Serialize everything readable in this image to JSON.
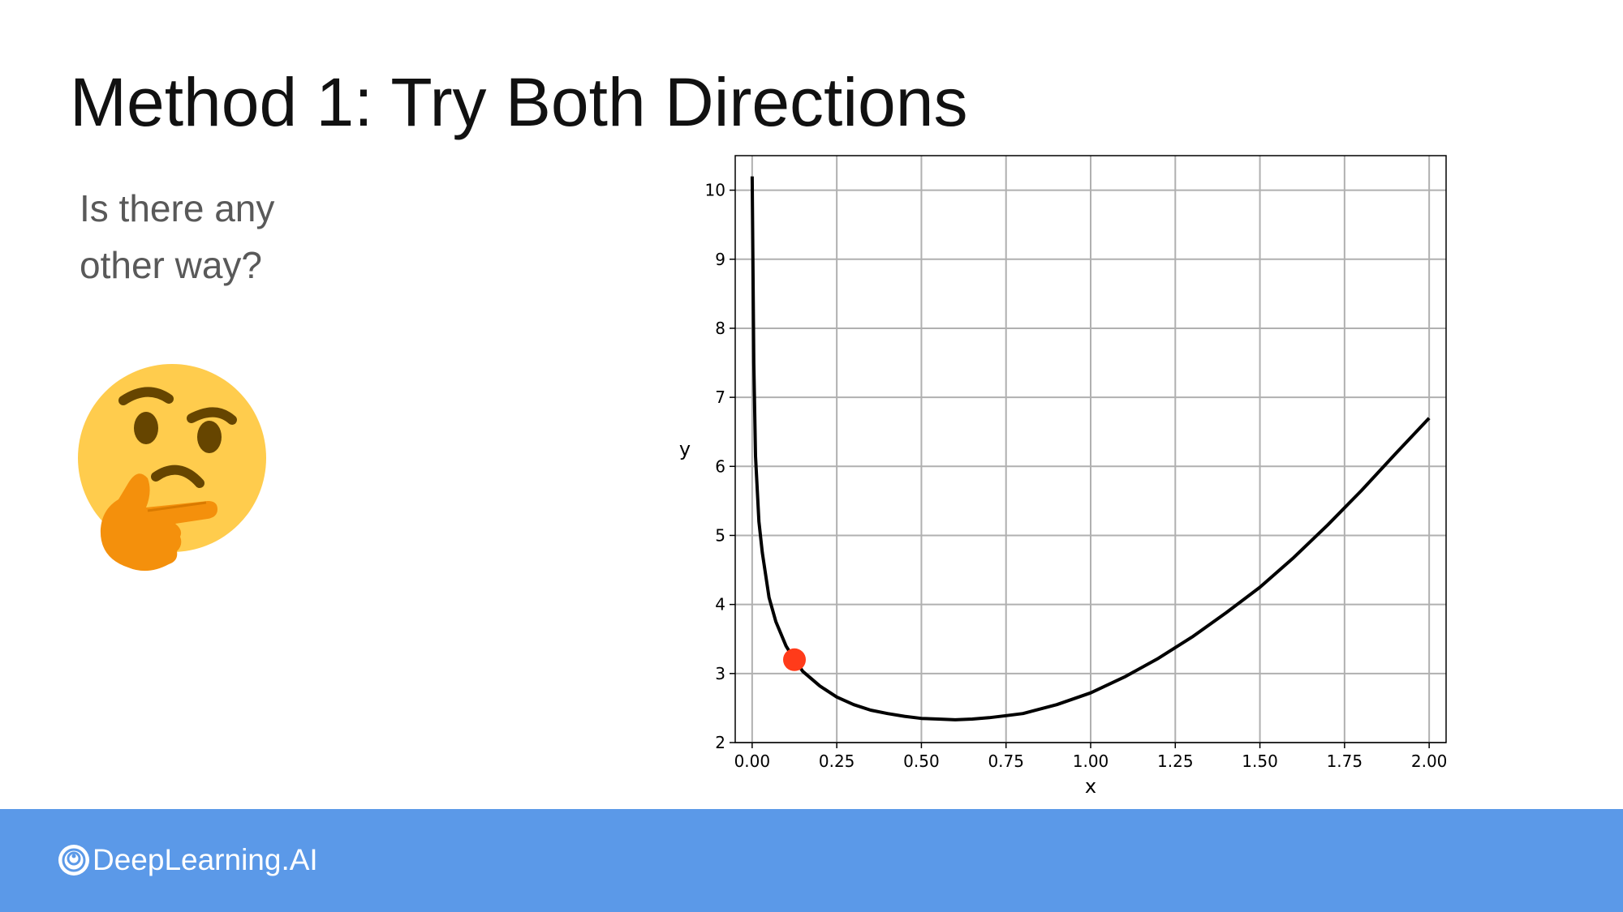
{
  "slide": {
    "title": "Method 1: Try Both Directions",
    "prompt_line1": "Is there any",
    "prompt_line2": "other way?",
    "emoji_icon": "thinking-face-icon"
  },
  "footer": {
    "brand": "DeepLearning.AI",
    "brand_icon": "deeplearning-ai-logo-icon",
    "color": "#5b99e8"
  },
  "chart_data": {
    "type": "line",
    "xlabel": "x",
    "ylabel": "y",
    "xlim": [
      -0.05,
      2.05
    ],
    "ylim": [
      2,
      10.5
    ],
    "x_ticks": [
      0.0,
      0.25,
      0.5,
      0.75,
      1.0,
      1.25,
      1.5,
      1.75,
      2.0
    ],
    "x_tick_labels": [
      "0.00",
      "0.25",
      "0.50",
      "0.75",
      "1.00",
      "1.25",
      "1.50",
      "1.75",
      "2.00"
    ],
    "y_ticks": [
      2,
      3,
      4,
      5,
      6,
      7,
      8,
      9,
      10
    ],
    "y_tick_labels": [
      "2",
      "3",
      "4",
      "5",
      "6",
      "7",
      "8",
      "9",
      "10"
    ],
    "grid": true,
    "series": [
      {
        "color": "#000000",
        "x": [
          0.0,
          0.005,
          0.01,
          0.02,
          0.03,
          0.05,
          0.07,
          0.1,
          0.125,
          0.15,
          0.2,
          0.25,
          0.3,
          0.35,
          0.4,
          0.45,
          0.5,
          0.55,
          0.6,
          0.65,
          0.7,
          0.75,
          0.8,
          0.9,
          1.0,
          1.1,
          1.2,
          1.3,
          1.4,
          1.5,
          1.6,
          1.7,
          1.8,
          1.9,
          2.0
        ],
        "y": [
          10.2,
          7.5,
          6.15,
          5.2,
          4.75,
          4.1,
          3.75,
          3.4,
          3.2,
          3.03,
          2.82,
          2.66,
          2.55,
          2.47,
          2.42,
          2.38,
          2.35,
          2.34,
          2.33,
          2.34,
          2.36,
          2.39,
          2.42,
          2.55,
          2.72,
          2.95,
          3.22,
          3.53,
          3.88,
          4.25,
          4.68,
          5.15,
          5.65,
          6.18,
          6.7
        ]
      }
    ],
    "points": [
      {
        "x": 0.125,
        "y": 3.2,
        "color": "#ff3b1a"
      }
    ]
  }
}
